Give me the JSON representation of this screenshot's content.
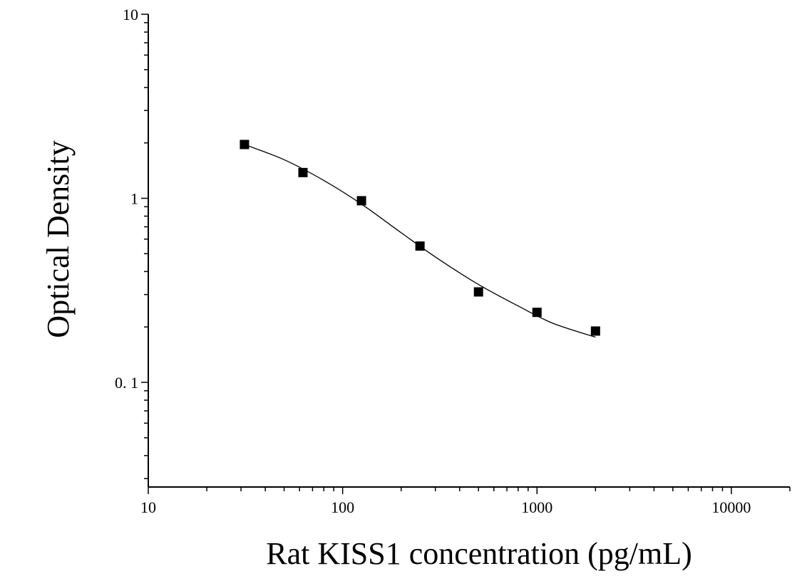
{
  "chart_data": {
    "type": "scatter",
    "title": "",
    "xlabel": "Rat KISS1 concentration (pg/mL)",
    "ylabel": "Optical Density",
    "x_scale": "log",
    "y_scale": "log",
    "xlim": [
      10,
      20000
    ],
    "ylim": [
      0.027,
      10
    ],
    "x_ticks": [
      {
        "value": 10,
        "label": "10"
      },
      {
        "value": 100,
        "label": "100"
      },
      {
        "value": 1000,
        "label": "1000"
      },
      {
        "value": 10000,
        "label": "10000"
      }
    ],
    "y_ticks": [
      {
        "value": 0.1,
        "label": "0. 1"
      },
      {
        "value": 1,
        "label": "1"
      },
      {
        "value": 10,
        "label": "10"
      }
    ],
    "grid": false,
    "legend": "none",
    "series": [
      {
        "marker": "square",
        "color": "#000000",
        "points": [
          {
            "x": 31.25,
            "y": 1.96
          },
          {
            "x": 62.5,
            "y": 1.38
          },
          {
            "x": 125,
            "y": 0.97
          },
          {
            "x": 250,
            "y": 0.55
          },
          {
            "x": 500,
            "y": 0.31
          },
          {
            "x": 1000,
            "y": 0.24
          },
          {
            "x": 2000,
            "y": 0.19
          }
        ]
      }
    ],
    "fit_curve": {
      "type": "4PL",
      "color": "#000000",
      "points": [
        {
          "x": 31.25,
          "y": 1.96
        },
        {
          "x": 50,
          "y": 1.62
        },
        {
          "x": 80,
          "y": 1.25
        },
        {
          "x": 125,
          "y": 0.93
        },
        {
          "x": 200,
          "y": 0.65
        },
        {
          "x": 300,
          "y": 0.48
        },
        {
          "x": 500,
          "y": 0.34
        },
        {
          "x": 800,
          "y": 0.26
        },
        {
          "x": 1200,
          "y": 0.21
        },
        {
          "x": 2000,
          "y": 0.176
        }
      ]
    }
  }
}
